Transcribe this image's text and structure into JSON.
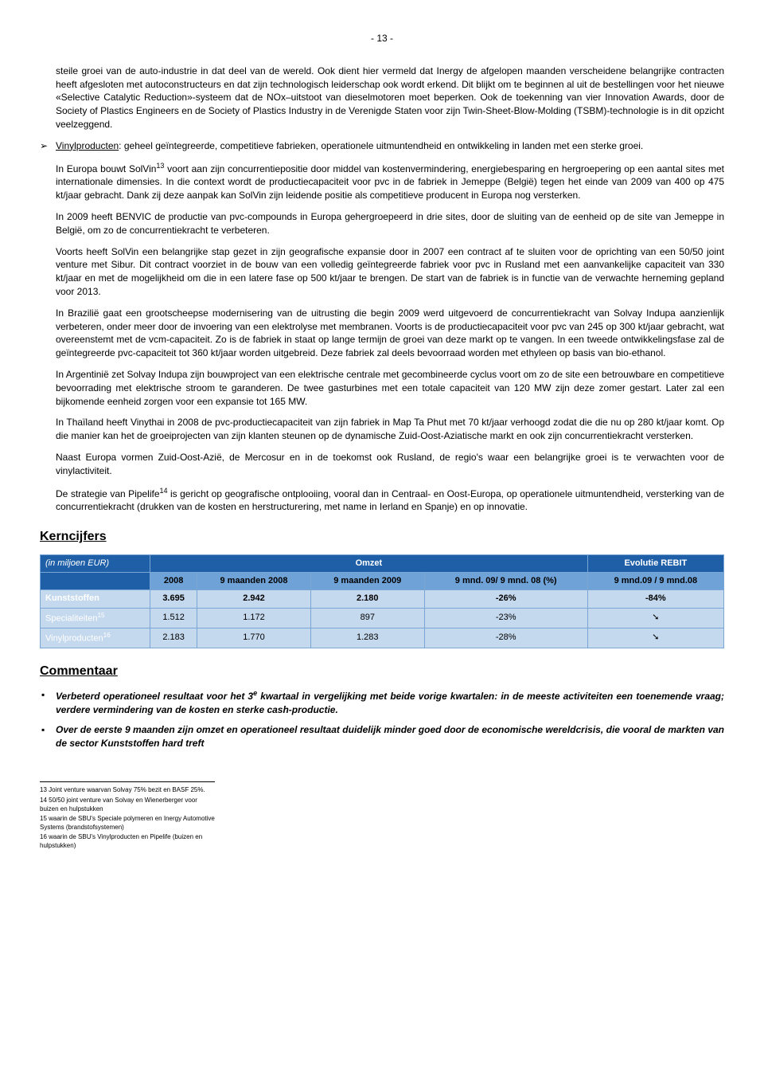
{
  "page_number": "- 13 -",
  "body_paragraphs": {
    "intro": "steile groei van de auto-industrie in dat deel van de wereld. Ook dient hier vermeld dat Inergy de afgelopen maanden verscheidene belangrijke contracten heeft afgesloten met autoconstructeurs en dat zijn technologisch leiderschap ook wordt erkend. Dit blijkt om te beginnen al uit de bestellingen voor het nieuwe «Selective Catalytic Reduction»-systeem dat de NOx–uitstoot van dieselmotoren moet beperken. Ook de toekenning van vier Innovation Awards, door de Society of Plastics Engineers en de Society of Plastics Industry in de Verenigde Staten voor zijn Twin-Sheet-Blow-Molding (TSBM)-technologie is in dit opzicht veelzeggend."
  },
  "vinyl": {
    "heading": "Vinylproducten",
    "heading_rest": ": geheel geïntegreerde, competitieve fabrieken, operationele uitmuntendheid en ontwikkeling in landen met een sterke groei.",
    "p1a": "In Europa bouwt SolVin",
    "p1sup": "13",
    "p1b": " voort aan zijn concurrentiepositie door middel van kostenvermindering, energiebesparing en hergroepering op een aantal sites met internationale dimensies. In die context wordt de productiecapaciteit voor pvc in de fabriek in Jemeppe (België) tegen het einde van 2009 van 400 op 475 kt/jaar gebracht. Dank zij deze aanpak kan SolVin zijn leidende positie als competitieve producent in Europa nog versterken.",
    "p2": "In 2009 heeft BENVIC de productie van pvc-compounds in Europa gehergroepeerd in drie sites, door de sluiting van de eenheid op de site van Jemeppe in België, om zo de concurrentiekracht te verbeteren.",
    "p3": "Voorts heeft SolVin een belangrijke stap gezet in zijn geografische expansie door in 2007 een contract af te sluiten voor de oprichting van een 50/50 joint venture met Sibur. Dit contract voorziet in de bouw van een volledig geïntegreerde fabriek voor pvc in Rusland met een aanvankelijke capaciteit van 330 kt/jaar en met de mogelijkheid om die in een latere fase op 500 kt/jaar te brengen.   De start van de fabriek is in functie van de verwachte herneming gepland voor 2013.",
    "p4": "In Brazilië gaat een grootscheepse modernisering van de uitrusting die begin 2009 werd uitgevoerd de concurrentiekracht van Solvay Indupa aanzienlijk verbeteren, onder meer door de invoering van een elektrolyse met membranen. Voorts is de productiecapaciteit voor pvc van 245 op 300 kt/jaar gebracht, wat overeenstemt met de vcm-capaciteit. Zo is de fabriek in staat op lange termijn de groei van deze markt op te vangen. In een tweede ontwikkelingsfase zal de geïntegreerde pvc-capaciteit tot 360 kt/jaar worden uitgebreid. Deze fabriek zal deels bevoorraad worden met ethyleen op basis van bio-ethanol.",
    "p5": "In Argentinië zet Solvay Indupa zijn bouwproject van een elektrische centrale met gecombineerde cyclus voort om zo de site een betrouwbare en competitieve bevoorrading met elektrische stroom te garanderen. De twee gasturbines met een totale capaciteit van 120 MW zijn deze zomer gestart.  Later zal een bijkomende eenheid zorgen voor een expansie tot 165 MW.",
    "p6": "In Thaïland heeft Vinythai in 2008 de pvc-productiecapaciteit van zijn fabriek in Map Ta Phut met 70 kt/jaar verhoogd zodat die die nu op 280 kt/jaar komt. Op die manier kan het de groeiprojecten van zijn klanten steunen op de dynamische Zuid-Oost-Aziatische markt en ook zijn concurrentiekracht versterken.",
    "p7": "Naast Europa vormen Zuid-Oost-Azië, de Mercosur en in de toekomst ook Rusland, de regio's waar een belangrijke groei is te verwachten voor de vinylactiviteit.",
    "p8a": "De strategie van Pipelife",
    "p8sup": "14",
    "p8b": " is gericht op geografische ontplooiing, vooral dan in Centraal- en Oost-Europa, op operationele uitmuntendheid, versterking van de concurrentiekracht (drukken van de kosten en herstructurering, met name in Ierland en Spanje) en op innovatie."
  },
  "kern": {
    "heading": "Kerncijfers",
    "caption": "(in miljoen EUR)",
    "omzet": "Omzet",
    "rebit": "Evolutie REBIT",
    "col_2008": "2008",
    "col_9m2008": "9 maanden 2008",
    "col_9m2009": "9 maanden 2009",
    "col_pct": "9 mnd. 09/ 9 mnd. 08 (%)",
    "col_rebit": "9 mnd.09 / 9 mnd.08",
    "rows": {
      "kunststoffen": {
        "label": "Kunststoffen",
        "c1": "3.695",
        "c2": "2.942",
        "c3": "2.180",
        "c4": "-26%",
        "c5": "-84%"
      },
      "spec": {
        "label": "Specialiteiten",
        "sup": "15",
        "c1": "1.512",
        "c2": "1.172",
        "c3": "897",
        "c4": "-23%",
        "c5": "➘"
      },
      "vinyl": {
        "label": "Vinylproducten",
        "sup": "16",
        "c1": "2.183",
        "c2": "1.770",
        "c3": "1.283",
        "c4": "-28%",
        "c5": "➘"
      }
    }
  },
  "commentaar": {
    "heading": "Commentaar",
    "item1a": "Verbeterd operationeel resultaat voor het 3",
    "item1sup": "e",
    "item1b": " kwartaal in vergelijking met beide vorige kwartalen: in de meeste activiteiten een toenemende vraag; verdere vermindering van de kosten en sterke cash-productie.",
    "item2": "Over de eerste 9 maanden zijn omzet en operationeel resultaat duidelijk minder goed door de economische wereldcrisis, die vooral de markten van de sector Kunststoffen hard treft"
  },
  "footnotes": {
    "f13": "13 Joint venture waarvan Solvay 75% bezit en BASF 25%.",
    "f14": "14 50/50 joint venture van Solvay en Wienerberger voor buizen en hulpstukken",
    "f15": "15 waarin de SBU's Speciale polymeren en Inergy Automotive Systems (brandstofsystemen)",
    "f16": "16 waarin de SBU's Vinylproducten en Pipelife (buizen en hulpstukken)"
  }
}
